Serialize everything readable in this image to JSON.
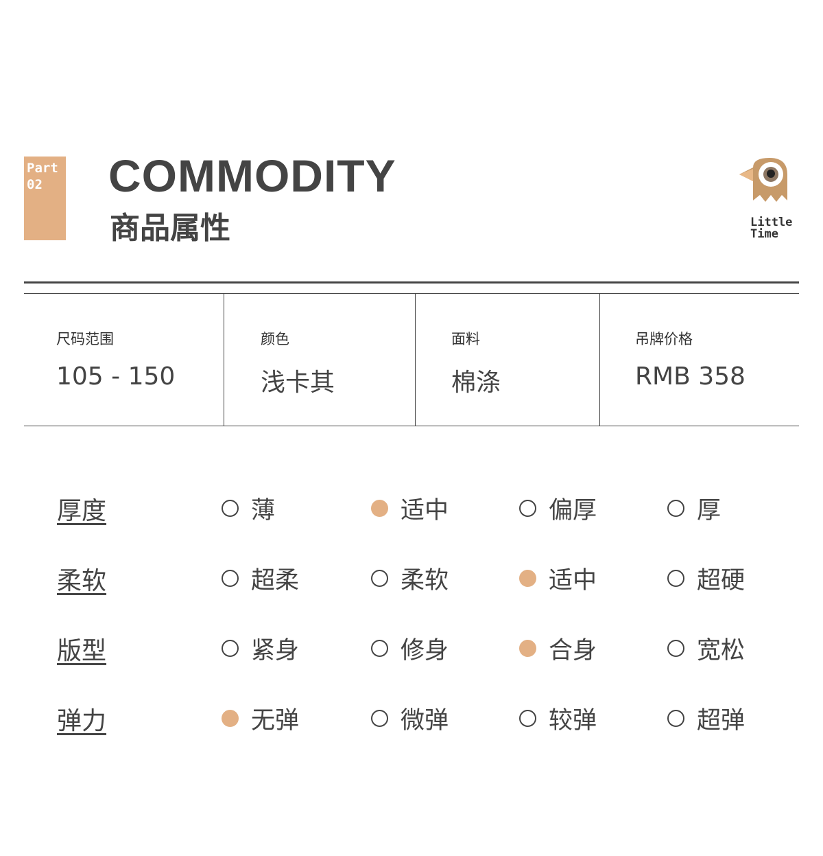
{
  "header": {
    "badge_line1": "Part",
    "badge_line2": "02",
    "title": "COMMODITY",
    "subtitle": "商品属性",
    "logo_text_line1": "Little",
    "logo_text_line2": "Time"
  },
  "colors": {
    "accent": "#e3b084",
    "text": "#444444"
  },
  "specs": [
    {
      "label": "尺码范围",
      "value": "105 - 150"
    },
    {
      "label": "颜色",
      "value": "浅卡其"
    },
    {
      "label": "面料",
      "value": "棉涤"
    },
    {
      "label": "吊牌价格",
      "value": "RMB 358"
    }
  ],
  "attributes": [
    {
      "label": "厚度",
      "options": [
        {
          "label": "薄",
          "selected": false
        },
        {
          "label": "适中",
          "selected": true
        },
        {
          "label": "偏厚",
          "selected": false
        },
        {
          "label": "厚",
          "selected": false
        }
      ]
    },
    {
      "label": "柔软",
      "options": [
        {
          "label": "超柔",
          "selected": false
        },
        {
          "label": "柔软",
          "selected": false
        },
        {
          "label": "适中",
          "selected": true
        },
        {
          "label": "超硬",
          "selected": false
        }
      ]
    },
    {
      "label": "版型",
      "options": [
        {
          "label": "紧身",
          "selected": false
        },
        {
          "label": "修身",
          "selected": false
        },
        {
          "label": "合身",
          "selected": true
        },
        {
          "label": "宽松",
          "selected": false
        }
      ]
    },
    {
      "label": "弹力",
      "options": [
        {
          "label": "无弹",
          "selected": true
        },
        {
          "label": "微弹",
          "selected": false
        },
        {
          "label": "较弹",
          "selected": false
        },
        {
          "label": "超弹",
          "selected": false
        }
      ]
    }
  ]
}
